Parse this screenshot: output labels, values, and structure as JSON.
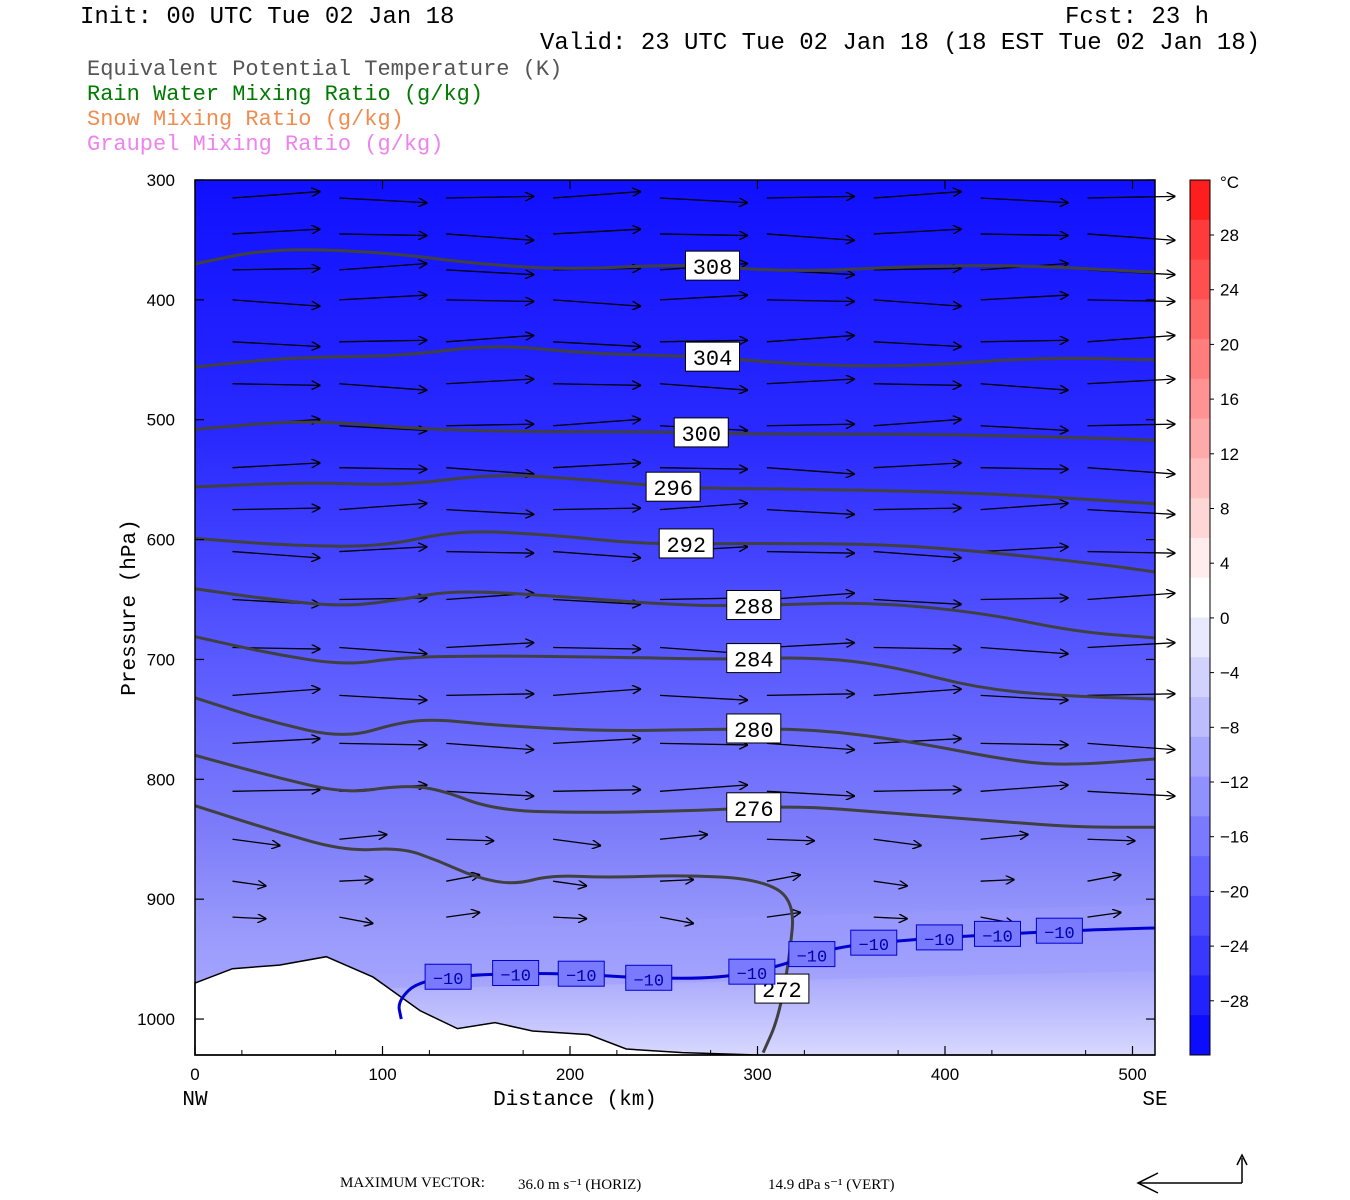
{
  "header": {
    "init": "Init: 00 UTC Tue 02 Jan 18",
    "fcst": "Fcst:   23 h",
    "valid": "Valid: 23 UTC Tue 02 Jan 18 (18 EST Tue 02 Jan 18)"
  },
  "legend": [
    {
      "label": "Equivalent Potential Temperature (K)",
      "color": "#555555"
    },
    {
      "label": "Rain Water Mixing Ratio (g/kg)",
      "color": "#007a00"
    },
    {
      "label": "Snow Mixing Ratio (g/kg)",
      "color": "#f08c50"
    },
    {
      "label": "Graupel Mixing Ratio (g/kg)",
      "color": "#ee82ee"
    }
  ],
  "chart_data": {
    "type": "cross-section contour",
    "xlabel": "Distance (km)",
    "ylabel": "Pressure (hPa)",
    "xlim": [
      0,
      512
    ],
    "ylim": [
      1030,
      300
    ],
    "x_ticks": [
      "0",
      "100",
      "200",
      "300",
      "400",
      "500"
    ],
    "x_tick_values": [
      0,
      100,
      200,
      300,
      400,
      500
    ],
    "y_ticks": [
      "300",
      "400",
      "500",
      "600",
      "700",
      "800",
      "900",
      "1000"
    ],
    "y_tick_values": [
      300,
      400,
      500,
      600,
      700,
      800,
      900,
      1000
    ],
    "left_end": "NW",
    "right_end": "SE",
    "colorbar": {
      "unit": "°C",
      "labels": [
        "28",
        "24",
        "20",
        "16",
        "12",
        "8",
        "4",
        "0",
        "−4",
        "−8",
        "−12",
        "−16",
        "−20",
        "−24",
        "−28"
      ],
      "colors": [
        "#ff1e1e",
        "#ff3a3a",
        "#ff5050",
        "#ff6666",
        "#ff7d7d",
        "#ff9393",
        "#ffaaaa",
        "#ffc0c0",
        "#ffd6d6",
        "#ffecec",
        "#ffffff",
        "#e8e8ff",
        "#d2d2ff",
        "#bcbcff",
        "#a6a6ff",
        "#9090ff",
        "#7a7aff",
        "#6464ff",
        "#4e4eff",
        "#3838ff",
        "#2222ff",
        "#0c0cff"
      ]
    },
    "theta_e_contours": [
      {
        "label": "308",
        "points": [
          [
            0,
            370
          ],
          [
            40,
            357
          ],
          [
            100,
            360
          ],
          [
            150,
            370
          ],
          [
            200,
            375
          ],
          [
            260,
            370
          ],
          [
            320,
            377
          ],
          [
            380,
            372
          ],
          [
            440,
            371
          ],
          [
            512,
            377
          ]
        ]
      },
      {
        "label": "304",
        "points": [
          [
            0,
            456
          ],
          [
            50,
            448
          ],
          [
            110,
            447
          ],
          [
            160,
            437
          ],
          [
            210,
            445
          ],
          [
            270,
            447
          ],
          [
            330,
            455
          ],
          [
            390,
            455
          ],
          [
            450,
            448
          ],
          [
            512,
            450
          ]
        ]
      },
      {
        "label": "300",
        "points": [
          [
            0,
            508
          ],
          [
            60,
            500
          ],
          [
            120,
            508
          ],
          [
            180,
            510
          ],
          [
            240,
            510
          ],
          [
            300,
            512
          ],
          [
            380,
            512
          ],
          [
            450,
            514
          ],
          [
            512,
            517
          ]
        ]
      },
      {
        "label": "296",
        "points": [
          [
            0,
            556
          ],
          [
            60,
            552
          ],
          [
            110,
            555
          ],
          [
            160,
            545
          ],
          [
            210,
            550
          ],
          [
            260,
            557
          ],
          [
            330,
            558
          ],
          [
            420,
            561
          ],
          [
            512,
            570
          ]
        ]
      },
      {
        "label": "292",
        "points": [
          [
            0,
            599
          ],
          [
            50,
            605
          ],
          [
            100,
            606
          ],
          [
            140,
            592
          ],
          [
            190,
            596
          ],
          [
            240,
            604
          ],
          [
            300,
            603
          ],
          [
            370,
            604
          ],
          [
            420,
            610
          ],
          [
            480,
            620
          ],
          [
            512,
            627
          ]
        ]
      },
      {
        "label": "288",
        "points": [
          [
            0,
            641
          ],
          [
            40,
            650
          ],
          [
            80,
            656
          ],
          [
            110,
            650
          ],
          [
            140,
            642
          ],
          [
            200,
            648
          ],
          [
            260,
            655
          ],
          [
            300,
            655
          ],
          [
            360,
            652
          ],
          [
            420,
            661
          ],
          [
            470,
            677
          ],
          [
            512,
            682
          ]
        ]
      },
      {
        "label": "284",
        "points": [
          [
            0,
            681
          ],
          [
            40,
            695
          ],
          [
            80,
            705
          ],
          [
            110,
            698
          ],
          [
            160,
            697
          ],
          [
            220,
            698
          ],
          [
            280,
            700
          ],
          [
            330,
            698
          ],
          [
            370,
            705
          ],
          [
            420,
            725
          ],
          [
            470,
            731
          ],
          [
            512,
            733
          ]
        ]
      },
      {
        "label": "280",
        "points": [
          [
            0,
            732
          ],
          [
            40,
            752
          ],
          [
            80,
            766
          ],
          [
            110,
            752
          ],
          [
            130,
            750
          ],
          [
            160,
            755
          ],
          [
            220,
            760
          ],
          [
            280,
            758
          ],
          [
            330,
            758
          ],
          [
            380,
            768
          ],
          [
            440,
            786
          ],
          [
            470,
            788
          ],
          [
            512,
            783
          ]
        ]
      },
      {
        "label": "276",
        "points": [
          [
            0,
            780
          ],
          [
            40,
            797
          ],
          [
            80,
            812
          ],
          [
            110,
            805
          ],
          [
            130,
            808
          ],
          [
            160,
            826
          ],
          [
            210,
            828
          ],
          [
            270,
            826
          ],
          [
            320,
            822
          ],
          [
            370,
            828
          ],
          [
            420,
            834
          ],
          [
            470,
            840
          ],
          [
            512,
            840
          ]
        ]
      },
      {
        "label": "272",
        "points": [
          [
            0,
            822
          ],
          [
            40,
            842
          ],
          [
            80,
            860
          ],
          [
            110,
            857
          ],
          [
            130,
            868
          ],
          [
            150,
            882
          ],
          [
            170,
            888
          ],
          [
            190,
            880
          ],
          [
            220,
            882
          ],
          [
            260,
            880
          ],
          [
            300,
            883
          ],
          [
            320,
            900
          ],
          [
            317,
            950
          ],
          [
            311,
            1000
          ],
          [
            303,
            1028
          ]
        ]
      }
    ],
    "isotherm_minus10": {
      "label": "−10",
      "points": [
        [
          110,
          1000
        ],
        [
          108,
          985
        ],
        [
          120,
          967
        ],
        [
          160,
          962
        ],
        [
          200,
          962
        ],
        [
          240,
          966
        ],
        [
          280,
          966
        ],
        [
          310,
          957
        ],
        [
          340,
          940
        ],
        [
          380,
          934
        ],
        [
          420,
          930
        ],
        [
          470,
          926
        ],
        [
          512,
          924
        ]
      ],
      "label_x": [
        135,
        171,
        206,
        242,
        297,
        329,
        362,
        397,
        428,
        461
      ]
    }
  },
  "footer": {
    "max_vector_label": "MAXIMUM VECTOR:",
    "horiz": "36.0 m s⁻¹ (HORIZ)",
    "vert": "14.9 dPa s⁻¹ (VERT)"
  }
}
